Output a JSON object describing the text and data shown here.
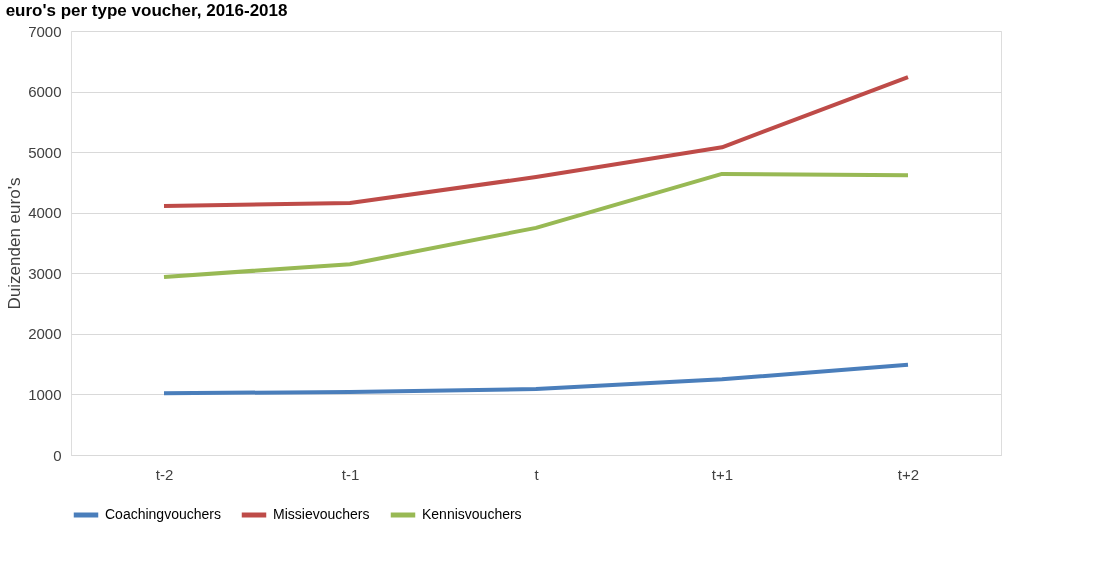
{
  "chart_data": {
    "type": "line",
    "title": "euro's per type voucher, 2016-2018",
    "ylabel": "Duizenden euro's",
    "categories": [
      "t-2",
      "t-1",
      "t",
      "t+1",
      "t+2"
    ],
    "series": [
      {
        "name": "Coachingvouchers",
        "color": "#4a7ebb",
        "values": [
          1020,
          1040,
          1090,
          1250,
          1490
        ]
      },
      {
        "name": "Missievouchers",
        "color": "#be4b48",
        "values": [
          4110,
          4160,
          4590,
          5080,
          6240
        ]
      },
      {
        "name": "Kennisvouchers",
        "color": "#98b954",
        "values": [
          2940,
          3150,
          3750,
          4640,
          4620
        ]
      }
    ],
    "ylim": [
      0,
      7000
    ],
    "yticks": [
      0,
      1000,
      2000,
      3000,
      4000,
      5000,
      6000,
      7000
    ],
    "grid": "y",
    "legend": "bottom",
    "marker": "none",
    "line_style": "solid"
  }
}
